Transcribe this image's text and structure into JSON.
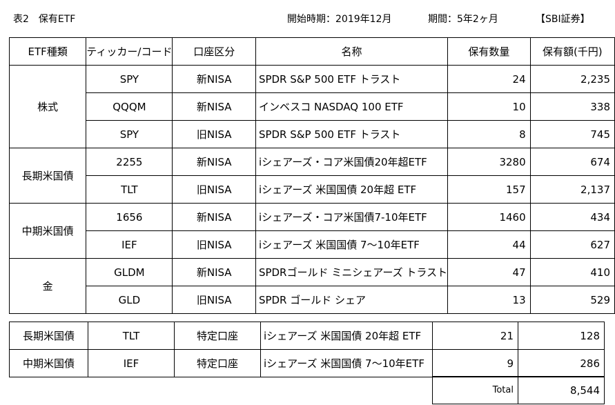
{
  "header": {
    "title": "表2　保有ETF",
    "start": "開始時期：2019年12月",
    "period": "期間：5年2ヶ月",
    "broker": "【SBI証券】"
  },
  "columns": [
    "ETF種類",
    "ティッカー/コード",
    "口座区分",
    "名称",
    "保有数量",
    "保有額(千円)"
  ],
  "groups": [
    {
      "type": "株式",
      "rows": [
        {
          "ticker": "SPY",
          "account": "新NISA",
          "name": "SPDR S&P 500 ETF トラスト",
          "qty": "24",
          "value": "2,235"
        },
        {
          "ticker": "QQQM",
          "account": "新NISA",
          "name": "インベスコ NASDAQ 100 ETF",
          "qty": "10",
          "value": "338"
        },
        {
          "ticker": "SPY",
          "account": "旧NISA",
          "name": "SPDR S&P 500 ETF トラスト",
          "qty": "8",
          "value": "745"
        }
      ]
    },
    {
      "type": "長期米国債",
      "rows": [
        {
          "ticker": "2255",
          "account": "新NISA",
          "name": "iシェアーズ・コア米国債20年超ETF",
          "qty": "3280",
          "value": "674"
        },
        {
          "ticker": "TLT",
          "account": "旧NISA",
          "name": "iシェアーズ 米国国債 20年超 ETF",
          "qty": "157",
          "value": "2,137"
        }
      ]
    },
    {
      "type": "中期米国債",
      "rows": [
        {
          "ticker": "1656",
          "account": "新NISA",
          "name": "iシェアーズ・コア米国債7-10年ETF",
          "qty": "1460",
          "value": "434"
        },
        {
          "ticker": "IEF",
          "account": "旧NISA",
          "name": "iシェアーズ 米国国債 7～10年ETF",
          "qty": "44",
          "value": "627"
        }
      ]
    },
    {
      "type": "金",
      "rows": [
        {
          "ticker": "GLDM",
          "account": "新NISA",
          "name": "SPDRゴールド ミニシェアーズ トラスト",
          "qty": "47",
          "value": "410"
        },
        {
          "ticker": "GLD",
          "account": "旧NISA",
          "name": "SPDR ゴールド シェア",
          "qty": "13",
          "value": "529"
        }
      ]
    }
  ],
  "taxable": [
    {
      "type": "長期米国債",
      "ticker": "TLT",
      "account": "特定口座",
      "name": "iシェアーズ 米国国債 20年超 ETF",
      "qty": "21",
      "value": "128"
    },
    {
      "type": "中期米国債",
      "ticker": "IEF",
      "account": "特定口座",
      "name": "iシェアーズ 米国国債 7～10年ETF",
      "qty": "9",
      "value": "286"
    }
  ],
  "total": {
    "label": "Total",
    "value": "8,544"
  }
}
